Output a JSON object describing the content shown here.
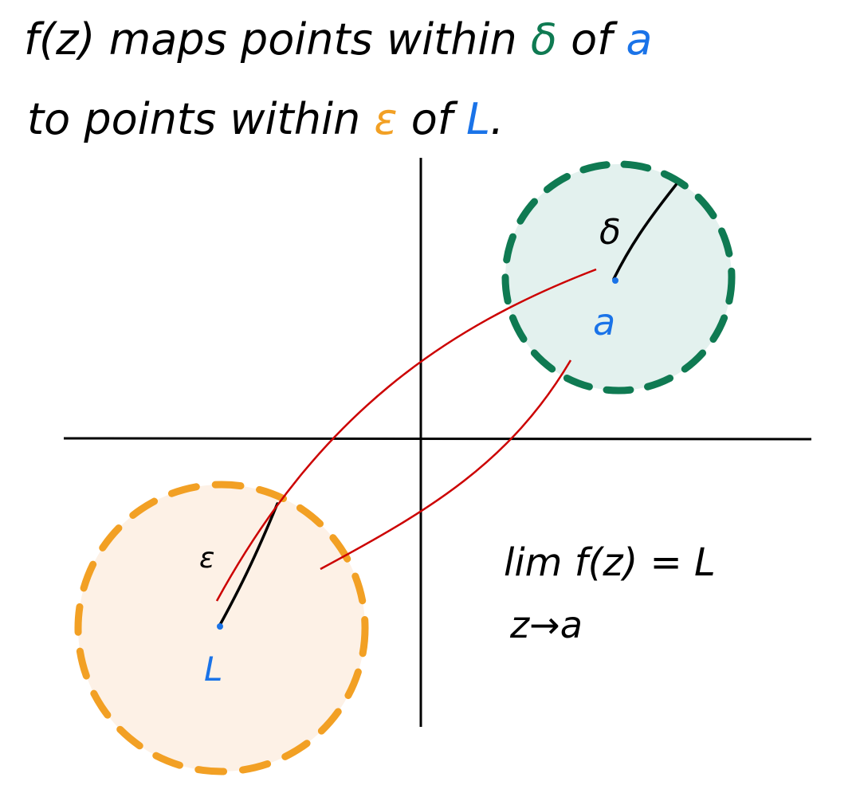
{
  "caption": {
    "line1": {
      "before": "f(z) maps points within ",
      "delta": "δ",
      "mid": " of ",
      "a": "a"
    },
    "line2": {
      "before": "to points within ",
      "epsilon": "ε",
      "mid": " of ",
      "L": "L",
      "end": "."
    }
  },
  "neighborhoods": {
    "delta_disc": {
      "radius_label": "δ",
      "center_label": "a"
    },
    "epsilon_disc": {
      "radius_label": "ε",
      "center_label": "L"
    }
  },
  "limit": {
    "expression": "lim f(z) = L",
    "subscript": "z→a"
  },
  "colors": {
    "ink": "#000000",
    "delta": "#0f7a52",
    "delta_fill": "#e3f1ee",
    "epsilon": "#f2a024",
    "epsilon_fill": "#fdf1e6",
    "point": "#1a73e8",
    "mapping": "#cc0000"
  }
}
